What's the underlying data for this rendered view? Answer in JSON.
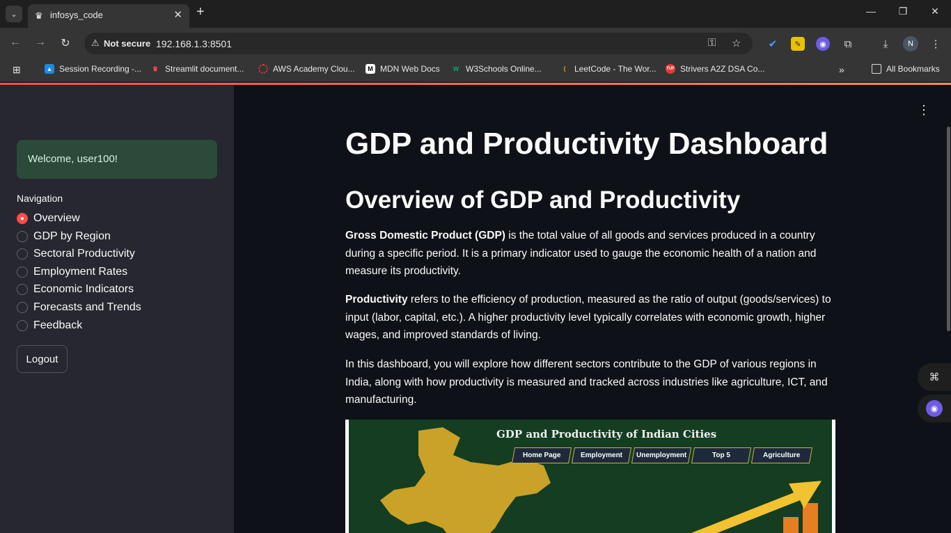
{
  "browser": {
    "tab_title": "infosys_code",
    "not_secure_label": "Not secure",
    "url": "192.168.1.3:8501",
    "profile_initial": "N",
    "bookmarks": [
      "Session Recording -...",
      "Streamlit document...",
      "AWS Academy Clou...",
      "MDN Web Docs",
      "W3Schools Online...",
      "LeetCode - The Wor...",
      "Strivers A2Z DSA Co..."
    ],
    "all_bookmarks_label": "All Bookmarks"
  },
  "sidebar": {
    "welcome": "Welcome, user100!",
    "nav_label": "Navigation",
    "nav_items": [
      "Overview",
      "GDP by Region",
      "Sectoral Productivity",
      "Employment Rates",
      "Economic Indicators",
      "Forecasts and Trends",
      "Feedback"
    ],
    "selected_index": 0,
    "logout_label": "Logout"
  },
  "main": {
    "title": "GDP and Productivity Dashboard",
    "subtitle": "Overview of GDP and Productivity",
    "p1_bold": "Gross Domestic Product (GDP)",
    "p1_rest": " is the total value of all goods and services produced in a country during a specific period. It is a primary indicator used to gauge the economic health of a nation and measure its productivity.",
    "p2_bold": "Productivity",
    "p2_rest": " refers to the efficiency of production, measured as the ratio of output (goods/services) to input (labor, capital, etc.). A higher productivity level typically correlates with economic growth, higher wages, and improved standards of living.",
    "p3": "In this dashboard, you will explore how different sectors contribute to the GDP of various regions in India, along with how productivity is measured and tracked across industries like agriculture, ICT, and manufacturing.",
    "hero_image": {
      "title": "GDP and Productivity of Indian Cities",
      "buttons": [
        "Home Page",
        "Employment",
        "Unemployment",
        "Top 5",
        "Agriculture"
      ]
    }
  },
  "colors": {
    "accent": "#ff4b4b",
    "sidebar_bg": "#262730",
    "main_bg": "#0e1117",
    "welcome_bg": "#2b4a3a"
  }
}
